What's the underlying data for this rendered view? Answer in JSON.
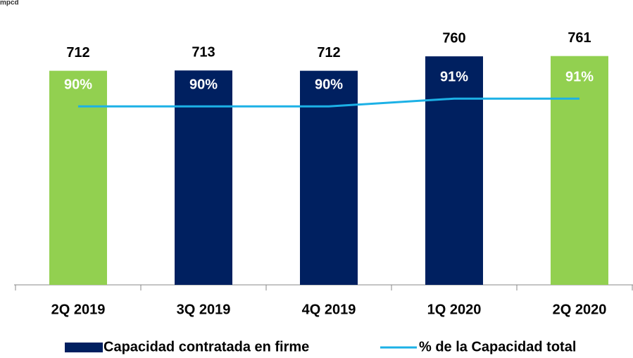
{
  "chart_data": {
    "type": "bar",
    "unit_label": "mpcd",
    "categories": [
      "2Q 2019",
      "3Q 2019",
      "4Q 2019",
      "1Q 2020",
      "2Q 2020"
    ],
    "ylim": [
      0,
      800
    ],
    "y2lim": [
      67,
      98
    ],
    "series": [
      {
        "name": "Capacidad contratada en firme",
        "type": "bar",
        "color": "#002060",
        "colors": [
          "#92d050",
          "#002060",
          "#002060",
          "#002060",
          "#92d050"
        ],
        "values": [
          712,
          713,
          712,
          760,
          761
        ]
      },
      {
        "name": "% de la Capacidad total",
        "type": "line",
        "axis": "y2",
        "color": "#1cb1e6",
        "values": [
          90,
          90,
          90,
          91,
          91
        ],
        "value_labels": [
          "90%",
          "90%",
          "90%",
          "91%",
          "91%"
        ]
      }
    ]
  }
}
